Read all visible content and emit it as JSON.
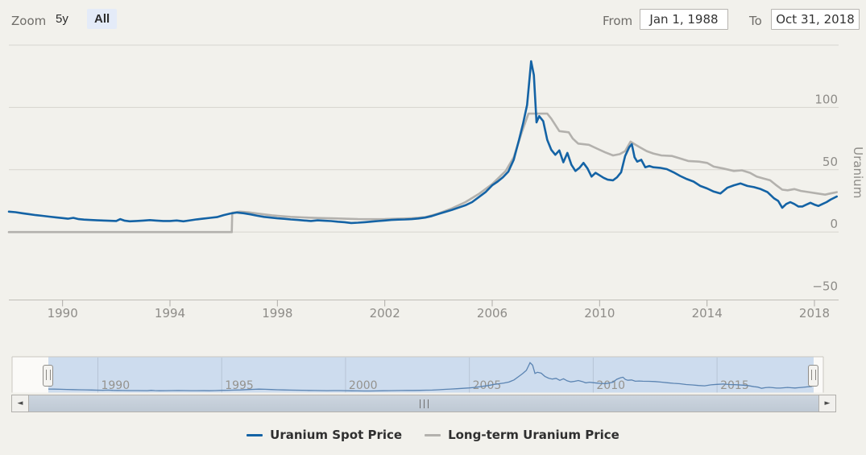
{
  "toolbar": {
    "zoom_label": "Zoom",
    "range_buttons": [
      {
        "label": "5y",
        "active": false
      },
      {
        "label": "All",
        "active": true
      }
    ],
    "from_label": "From",
    "from_value": "Jan 1, 1988",
    "to_label": "To",
    "to_value": "Oct 31, 2018"
  },
  "chart_data": {
    "type": "line",
    "title": "",
    "xlabel": "",
    "ylabel": "Uranium",
    "grid": true,
    "legend_position": "bottom",
    "xlim": [
      1988,
      2018.9
    ],
    "ylim": [
      -54.5,
      150
    ],
    "x_ticks": [
      1990,
      1994,
      1998,
      2002,
      2006,
      2010,
      2014,
      2018
    ],
    "y_ticks": [
      {
        "value": 100,
        "label": "100"
      },
      {
        "value": 50,
        "label": "50"
      },
      {
        "value": 0,
        "label": "0"
      },
      {
        "value": -50,
        "label": "−50"
      }
    ],
    "grid_values": [
      150,
      100,
      50,
      0
    ],
    "series": [
      {
        "name": "Uranium Spot Price",
        "color": "#1463a5",
        "points": [
          [
            1988.0,
            16.4
          ],
          [
            1988.25,
            15.9
          ],
          [
            1988.5,
            15.1
          ],
          [
            1988.75,
            14.4
          ],
          [
            1989.0,
            13.6
          ],
          [
            1989.25,
            13.0
          ],
          [
            1989.5,
            12.4
          ],
          [
            1989.75,
            11.8
          ],
          [
            1990.0,
            11.2
          ],
          [
            1990.2,
            10.7
          ],
          [
            1990.4,
            11.4
          ],
          [
            1990.6,
            10.4
          ],
          [
            1990.8,
            10.0
          ],
          [
            1991.0,
            9.7
          ],
          [
            1991.3,
            9.4
          ],
          [
            1991.6,
            9.2
          ],
          [
            1992.0,
            8.9
          ],
          [
            1992.15,
            10.4
          ],
          [
            1992.3,
            9.2
          ],
          [
            1992.5,
            8.6
          ],
          [
            1992.75,
            8.9
          ],
          [
            1993.0,
            9.2
          ],
          [
            1993.25,
            9.6
          ],
          [
            1993.5,
            9.2
          ],
          [
            1993.75,
            8.9
          ],
          [
            1994.0,
            8.9
          ],
          [
            1994.25,
            9.3
          ],
          [
            1994.5,
            8.6
          ],
          [
            1994.75,
            9.4
          ],
          [
            1995.0,
            10.2
          ],
          [
            1995.25,
            10.8
          ],
          [
            1995.5,
            11.4
          ],
          [
            1995.75,
            12.0
          ],
          [
            1996.0,
            13.6
          ],
          [
            1996.25,
            14.9
          ],
          [
            1996.5,
            15.7
          ],
          [
            1996.75,
            15.1
          ],
          [
            1997.0,
            14.2
          ],
          [
            1997.25,
            13.1
          ],
          [
            1997.5,
            12.2
          ],
          [
            1997.75,
            11.6
          ],
          [
            1998.0,
            11.0
          ],
          [
            1998.25,
            10.6
          ],
          [
            1998.5,
            10.1
          ],
          [
            1998.75,
            9.7
          ],
          [
            1999.0,
            9.3
          ],
          [
            1999.25,
            8.9
          ],
          [
            1999.5,
            9.4
          ],
          [
            1999.75,
            9.1
          ],
          [
            2000.0,
            8.8
          ],
          [
            2000.25,
            8.3
          ],
          [
            2000.5,
            7.9
          ],
          [
            2000.75,
            7.3
          ],
          [
            2001.0,
            7.5
          ],
          [
            2001.25,
            7.9
          ],
          [
            2001.5,
            8.4
          ],
          [
            2001.75,
            8.8
          ],
          [
            2002.0,
            9.3
          ],
          [
            2002.25,
            9.7
          ],
          [
            2002.5,
            10.0
          ],
          [
            2002.75,
            10.1
          ],
          [
            2003.0,
            10.4
          ],
          [
            2003.25,
            10.9
          ],
          [
            2003.5,
            11.6
          ],
          [
            2003.75,
            12.8
          ],
          [
            2004.0,
            14.6
          ],
          [
            2004.25,
            16.2
          ],
          [
            2004.5,
            17.8
          ],
          [
            2004.75,
            19.6
          ],
          [
            2005.0,
            21.5
          ],
          [
            2005.25,
            24.0
          ],
          [
            2005.5,
            28.0
          ],
          [
            2005.75,
            32.0
          ],
          [
            2006.0,
            37.5
          ],
          [
            2006.2,
            40.5
          ],
          [
            2006.4,
            44.0
          ],
          [
            2006.6,
            48.5
          ],
          [
            2006.8,
            58.0
          ],
          [
            2007.0,
            74.0
          ],
          [
            2007.15,
            87.0
          ],
          [
            2007.3,
            102.0
          ],
          [
            2007.45,
            137.0
          ],
          [
            2007.55,
            126.0
          ],
          [
            2007.65,
            88.0
          ],
          [
            2007.75,
            93.0
          ],
          [
            2007.9,
            89.0
          ],
          [
            2008.05,
            74.0
          ],
          [
            2008.2,
            66.0
          ],
          [
            2008.35,
            62.0
          ],
          [
            2008.5,
            65.5
          ],
          [
            2008.65,
            56.0
          ],
          [
            2008.8,
            63.5
          ],
          [
            2008.95,
            54.0
          ],
          [
            2009.1,
            49.0
          ],
          [
            2009.25,
            51.5
          ],
          [
            2009.4,
            55.5
          ],
          [
            2009.55,
            51.0
          ],
          [
            2009.7,
            44.5
          ],
          [
            2009.85,
            47.5
          ],
          [
            2010.0,
            45.5
          ],
          [
            2010.15,
            43.5
          ],
          [
            2010.3,
            42.0
          ],
          [
            2010.5,
            41.5
          ],
          [
            2010.65,
            44.0
          ],
          [
            2010.8,
            48.0
          ],
          [
            2010.95,
            61.0
          ],
          [
            2011.1,
            68.0
          ],
          [
            2011.2,
            70.5
          ],
          [
            2011.3,
            60.0
          ],
          [
            2011.4,
            56.5
          ],
          [
            2011.55,
            58.0
          ],
          [
            2011.7,
            52.0
          ],
          [
            2011.85,
            53.0
          ],
          [
            2012.0,
            52.0
          ],
          [
            2012.25,
            51.5
          ],
          [
            2012.5,
            50.5
          ],
          [
            2012.75,
            48.0
          ],
          [
            2013.0,
            45.0
          ],
          [
            2013.25,
            42.5
          ],
          [
            2013.5,
            40.5
          ],
          [
            2013.75,
            37.0
          ],
          [
            2014.0,
            35.0
          ],
          [
            2014.25,
            32.5
          ],
          [
            2014.5,
            31.0
          ],
          [
            2014.75,
            35.5
          ],
          [
            2015.0,
            37.5
          ],
          [
            2015.25,
            39.0
          ],
          [
            2015.5,
            37.0
          ],
          [
            2015.75,
            36.0
          ],
          [
            2016.0,
            34.5
          ],
          [
            2016.25,
            32.0
          ],
          [
            2016.5,
            27.0
          ],
          [
            2016.65,
            25.0
          ],
          [
            2016.8,
            19.5
          ],
          [
            2016.95,
            22.5
          ],
          [
            2017.1,
            24.0
          ],
          [
            2017.25,
            22.5
          ],
          [
            2017.4,
            20.5
          ],
          [
            2017.55,
            20.5
          ],
          [
            2017.7,
            22.0
          ],
          [
            2017.85,
            23.5
          ],
          [
            2018.0,
            22.0
          ],
          [
            2018.15,
            21.0
          ],
          [
            2018.3,
            22.5
          ],
          [
            2018.45,
            24.0
          ],
          [
            2018.6,
            26.0
          ],
          [
            2018.83,
            28.5
          ]
        ]
      },
      {
        "name": "Long-term Uranium Price",
        "color": "#b3b1ad",
        "points": [
          [
            1988.0,
            0
          ],
          [
            1996.3,
            0
          ],
          [
            1996.32,
            15.5
          ],
          [
            1996.6,
            16.4
          ],
          [
            1996.9,
            15.9
          ],
          [
            1997.2,
            15.0
          ],
          [
            1997.5,
            14.2
          ],
          [
            1997.8,
            13.4
          ],
          [
            1998.1,
            12.8
          ],
          [
            1998.5,
            12.2
          ],
          [
            1999.0,
            11.7
          ],
          [
            1999.5,
            11.3
          ],
          [
            2000.0,
            11.0
          ],
          [
            2000.5,
            10.7
          ],
          [
            2001.0,
            10.4
          ],
          [
            2001.5,
            10.3
          ],
          [
            2002.0,
            10.4
          ],
          [
            2002.5,
            10.7
          ],
          [
            2003.0,
            11.1
          ],
          [
            2003.5,
            11.9
          ],
          [
            2004.0,
            14.9
          ],
          [
            2004.5,
            19.0
          ],
          [
            2005.0,
            24.0
          ],
          [
            2005.5,
            30.5
          ],
          [
            2006.0,
            38.5
          ],
          [
            2006.5,
            49.0
          ],
          [
            2006.8,
            60.0
          ],
          [
            2007.1,
            80.0
          ],
          [
            2007.35,
            95.0
          ],
          [
            2008.05,
            95.0
          ],
          [
            2008.2,
            91.0
          ],
          [
            2008.35,
            86.0
          ],
          [
            2008.5,
            81.0
          ],
          [
            2008.85,
            80.0
          ],
          [
            2009.0,
            75.0
          ],
          [
            2009.2,
            71.0
          ],
          [
            2009.6,
            70.0
          ],
          [
            2009.9,
            67.0
          ],
          [
            2010.2,
            64.0
          ],
          [
            2010.5,
            61.5
          ],
          [
            2010.75,
            62.5
          ],
          [
            2010.95,
            65.0
          ],
          [
            2011.15,
            72.5
          ],
          [
            2011.3,
            70.5
          ],
          [
            2011.5,
            68.0
          ],
          [
            2011.75,
            65.0
          ],
          [
            2012.0,
            63.0
          ],
          [
            2012.3,
            61.5
          ],
          [
            2012.7,
            61.0
          ],
          [
            2013.0,
            59.0
          ],
          [
            2013.3,
            57.0
          ],
          [
            2013.7,
            56.5
          ],
          [
            2014.0,
            55.5
          ],
          [
            2014.25,
            52.5
          ],
          [
            2014.6,
            51.0
          ],
          [
            2015.0,
            49.0
          ],
          [
            2015.3,
            49.5
          ],
          [
            2015.6,
            47.5
          ],
          [
            2015.85,
            44.5
          ],
          [
            2016.1,
            43.0
          ],
          [
            2016.35,
            41.5
          ],
          [
            2016.55,
            38.0
          ],
          [
            2016.8,
            34.0
          ],
          [
            2017.0,
            33.5
          ],
          [
            2017.25,
            34.5
          ],
          [
            2017.5,
            33.0
          ],
          [
            2017.8,
            32.0
          ],
          [
            2018.1,
            31.0
          ],
          [
            2018.4,
            30.0
          ],
          [
            2018.6,
            31.0
          ],
          [
            2018.83,
            32.0
          ]
        ]
      }
    ],
    "navigator": {
      "x_ticks": [
        1990,
        1995,
        2000,
        2005,
        2010,
        2015
      ],
      "series_index": 0,
      "line_color": "#5b84b2",
      "fill_color": "#cddcee"
    }
  },
  "legend": [
    {
      "label": "Uranium Spot Price",
      "color": "#1463a5"
    },
    {
      "label": "Long-term Uranium Price",
      "color": "#b3b1ad"
    }
  ],
  "scrollbar": {
    "left_arrow": "◄",
    "right_arrow": "►"
  },
  "colors": {
    "background": "#f2f1ec",
    "gridline": "#d7d5cf",
    "axis_line": "#c0beb8",
    "axis_text": "#8e8c88",
    "nav_label": "#95938e",
    "active_button_bg": "#e4ebf8"
  }
}
